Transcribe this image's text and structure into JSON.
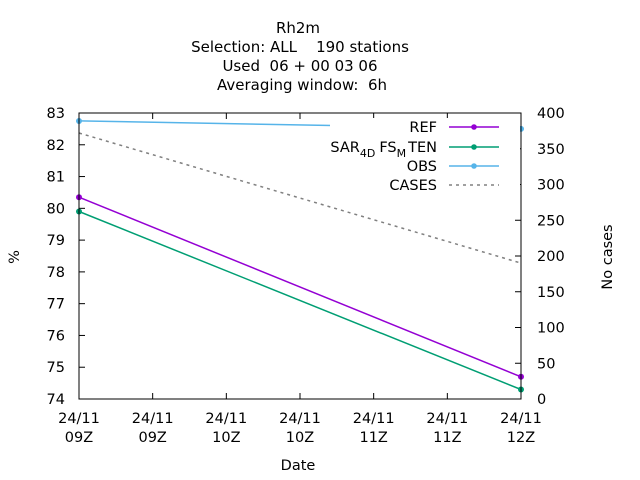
{
  "chart_data": {
    "type": "line",
    "title_lines": [
      "Rh2m",
      "Selection: ALL    190 stations",
      "Used  06 + 00 03 06",
      "Averaging window:  6h"
    ],
    "xlabel": "Date",
    "ylabel": "%",
    "y2label": "No cases",
    "x_ticks": [
      {
        "line1": "24/11",
        "line2": "09Z"
      },
      {
        "line1": "24/11",
        "line2": "09Z"
      },
      {
        "line1": "24/11",
        "line2": "10Z"
      },
      {
        "line1": "24/11",
        "line2": "10Z"
      },
      {
        "line1": "24/11",
        "line2": "11Z"
      },
      {
        "line1": "24/11",
        "line2": "11Z"
      },
      {
        "line1": "24/11",
        "line2": "12Z"
      }
    ],
    "xlim": [
      0,
      6
    ],
    "ylim": [
      74,
      83
    ],
    "y_ticks": [
      74,
      75,
      76,
      77,
      78,
      79,
      80,
      81,
      82,
      83
    ],
    "y2lim": [
      0,
      400
    ],
    "y2_ticks": [
      0,
      50,
      100,
      150,
      200,
      250,
      300,
      350,
      400
    ],
    "legend_position": "top-right",
    "series": [
      {
        "name": "REF",
        "color": "#9400d3",
        "axis": "y",
        "x": [
          0,
          6
        ],
        "values": [
          80.35,
          74.7
        ],
        "marker": "circle"
      },
      {
        "name_parts": [
          "SAR",
          "4",
          "D",
          "FS",
          "M",
          "TEN"
        ],
        "name": "SAR4DFSMTEN",
        "color": "#009e73",
        "axis": "y",
        "x": [
          0,
          6
        ],
        "values": [
          79.9,
          74.3
        ],
        "marker": "circle"
      },
      {
        "name": "OBS",
        "color": "#56b4e9",
        "axis": "y",
        "x": [
          0,
          6
        ],
        "values": [
          82.75,
          82.5
        ],
        "marker": "circle"
      },
      {
        "name": "CASES",
        "color": "#808080",
        "axis": "y2",
        "dashed": true,
        "x": [
          0,
          6
        ],
        "values": [
          372,
          190
        ],
        "marker": "none"
      }
    ]
  }
}
